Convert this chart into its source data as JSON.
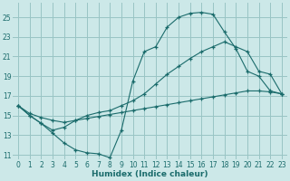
{
  "background_color": "#cce8e8",
  "grid_color": "#99c4c4",
  "line_color": "#1a6b6b",
  "xlabel": "Humidex (Indice chaleur)",
  "xlim": [
    -0.5,
    23.5
  ],
  "ylim": [
    10.5,
    26.5
  ],
  "xticks": [
    0,
    1,
    2,
    3,
    4,
    5,
    6,
    7,
    8,
    9,
    10,
    11,
    12,
    13,
    14,
    15,
    16,
    17,
    18,
    19,
    20,
    21,
    22,
    23
  ],
  "yticks": [
    11,
    13,
    15,
    17,
    19,
    21,
    23,
    25
  ],
  "curve1_x": [
    0,
    1,
    2,
    3,
    4,
    5,
    6,
    7,
    8,
    9,
    10,
    11,
    12,
    13,
    14,
    15,
    16,
    17,
    18,
    19,
    20,
    21,
    22,
    23
  ],
  "curve1_y": [
    16.0,
    15.0,
    14.2,
    13.2,
    12.2,
    11.5,
    11.2,
    11.1,
    10.7,
    13.5,
    18.5,
    21.5,
    22.0,
    24.0,
    25.0,
    25.4,
    25.5,
    25.3,
    23.5,
    21.8,
    19.5,
    19.0,
    17.5,
    17.2
  ],
  "curve2_x": [
    0,
    1,
    2,
    3,
    4,
    5,
    6,
    7,
    8,
    9,
    10,
    11,
    12,
    13,
    14,
    15,
    16,
    17,
    18,
    19,
    20,
    21,
    22,
    23
  ],
  "curve2_y": [
    16.0,
    15.0,
    14.2,
    13.5,
    13.8,
    14.5,
    15.0,
    15.3,
    15.5,
    16.0,
    16.5,
    17.2,
    18.2,
    19.2,
    20.0,
    20.8,
    21.5,
    22.0,
    22.5,
    22.0,
    21.5,
    19.5,
    19.2,
    17.2
  ],
  "curve3_x": [
    0,
    1,
    2,
    3,
    4,
    5,
    6,
    7,
    8,
    9,
    10,
    11,
    12,
    13,
    14,
    15,
    16,
    17,
    18,
    19,
    20,
    21,
    22,
    23
  ],
  "curve3_y": [
    16.0,
    15.2,
    14.8,
    14.5,
    14.3,
    14.5,
    14.7,
    14.9,
    15.1,
    15.3,
    15.5,
    15.7,
    15.9,
    16.1,
    16.3,
    16.5,
    16.7,
    16.9,
    17.1,
    17.3,
    17.5,
    17.5,
    17.4,
    17.2
  ]
}
